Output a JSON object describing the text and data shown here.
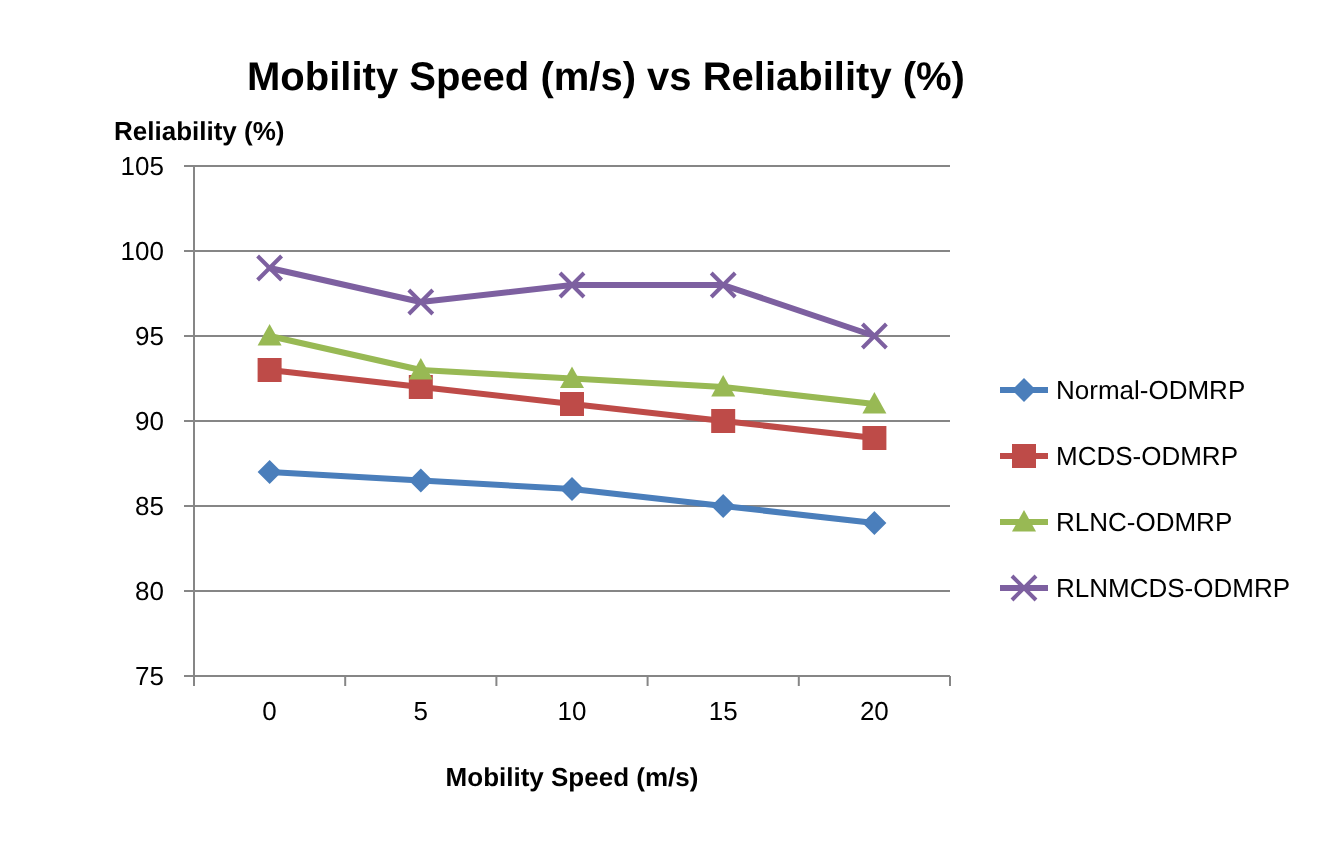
{
  "chart_data": {
    "type": "line",
    "title": "Mobility Speed (m/s) vs Reliability (%)",
    "xlabel": "Mobility Speed (m/s)",
    "ylabel": "Reliability (%)",
    "categories": [
      "0",
      "5",
      "10",
      "15",
      "20"
    ],
    "series": [
      {
        "name": "Normal-ODMRP",
        "color": "#4a7ebb",
        "marker": "diamond",
        "values": [
          87,
          86.5,
          86,
          85,
          84
        ]
      },
      {
        "name": "MCDS-ODMRP",
        "color": "#be4b48",
        "marker": "square",
        "values": [
          93,
          92,
          91,
          90,
          89
        ]
      },
      {
        "name": "RLNC-ODMRP",
        "color": "#98b954",
        "marker": "triangle",
        "values": [
          95,
          93,
          92.5,
          92,
          91
        ]
      },
      {
        "name": "RLNMCDS-ODMRP",
        "color": "#7d60a0",
        "marker": "cross",
        "values": [
          99,
          97,
          98,
          98,
          95
        ]
      }
    ],
    "ylim": [
      75,
      105
    ],
    "yticks": [
      75,
      80,
      85,
      90,
      95,
      100,
      105
    ],
    "grid": "y",
    "legend": "right"
  }
}
